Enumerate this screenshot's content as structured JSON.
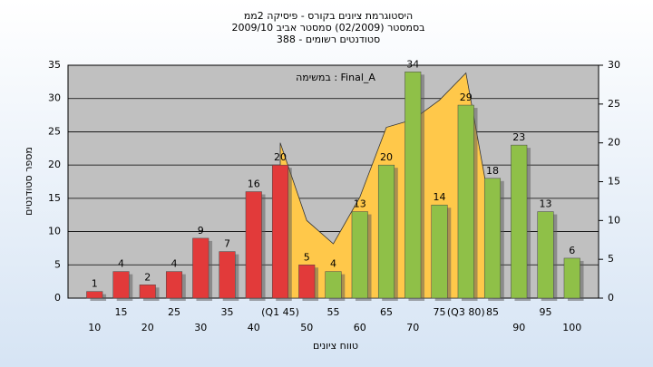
{
  "chart_data": {
    "type": "bar",
    "title_lines": [
      "היסטוגרמת ציונים בקורס - פיסיקה 2ממ",
      "בסמסטר  (02/2009)  סמסטר אביב 2009/10",
      "סטודנטים רשומים - 388"
    ],
    "y_label": "מספר סטודנטים",
    "x_label": "טווח ציונים",
    "categories": [
      "10",
      "15",
      "20",
      "25",
      "30",
      "35",
      "40",
      "(Q1 45)",
      "50",
      "55",
      "60",
      "65",
      "70",
      "75",
      "(Q3 80)",
      "85",
      "90",
      "95",
      "100"
    ],
    "series": [
      {
        "values": [
          1,
          4,
          2,
          4,
          9,
          7,
          16,
          20,
          5,
          4,
          13,
          20,
          34,
          14,
          29,
          18,
          23,
          13,
          6
        ],
        "colors": [
          "#e23a3a",
          "#e23a3a",
          "#e23a3a",
          "#e23a3a",
          "#e23a3a",
          "#e23a3a",
          "#e23a3a",
          "#e23a3a",
          "#e23a3a",
          "#8fc048",
          "#8fc048",
          "#8fc048",
          "#8fc048",
          "#8fc048",
          "#8fc048",
          "#8fc048",
          "#8fc048",
          "#8fc048",
          "#8fc048"
        ]
      },
      {
        "name": "במשימה : Final_A",
        "type": "area",
        "axis": "y2",
        "color": "#ffc84a",
        "values": [
          null,
          null,
          null,
          null,
          null,
          null,
          null,
          20,
          10,
          7,
          13,
          22,
          23,
          25.5,
          29,
          10,
          null,
          null,
          null
        ]
      }
    ],
    "ylim": [
      0,
      35
    ],
    "yticks": [
      0,
      5,
      10,
      15,
      20,
      25,
      30,
      35
    ],
    "y2lim": [
      0,
      30
    ],
    "y2ticks": [
      0,
      5,
      10,
      15,
      20,
      25,
      30
    ],
    "grid": true
  }
}
